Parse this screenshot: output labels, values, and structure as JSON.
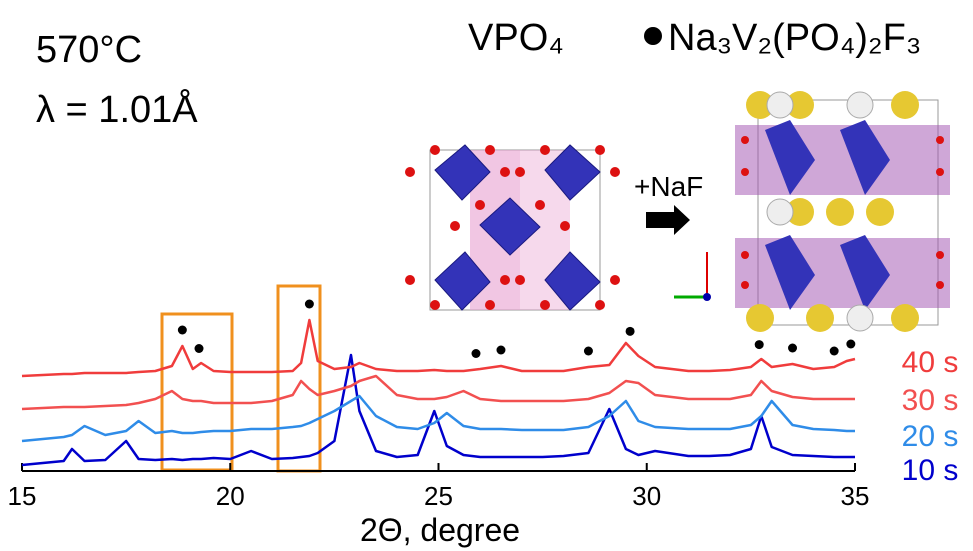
{
  "chart_data": {
    "type": "line",
    "title": "570°C",
    "subtitle": "λ = 1.01Å",
    "annotations": [
      "VPO₄",
      "Na₃V₂(PO₄)₂F₃",
      "+NaF"
    ],
    "xlabel": "2Θ, degree",
    "xlim": [
      15,
      35
    ],
    "xticks": [
      15,
      20,
      25,
      30,
      35
    ],
    "ylim": [
      0,
      160
    ],
    "x": [
      15,
      15.5,
      16,
      16.2,
      16.5,
      17,
      17.5,
      17.8,
      18.2,
      18.6,
      18.85,
      19.1,
      19.3,
      19.6,
      20,
      20.5,
      21,
      21.5,
      21.7,
      21.9,
      22.1,
      22.5,
      22.9,
      23.1,
      23.5,
      24,
      24.5,
      24.9,
      25.2,
      25.6,
      26,
      26.5,
      27,
      27.5,
      28,
      28.6,
      29.1,
      29.5,
      29.8,
      30.2,
      31,
      31.5,
      32,
      32.5,
      32.75,
      33,
      33.5,
      34,
      34.5,
      34.8,
      35
    ],
    "series": [
      {
        "name": "10 s",
        "color": "#0000cc",
        "values": [
          6,
          8,
          10,
          22,
          10,
          11,
          30,
          12,
          11,
          12,
          11,
          12,
          12,
          13,
          12,
          20,
          12,
          13,
          14,
          15,
          18,
          30,
          116,
          60,
          20,
          14,
          16,
          60,
          25,
          16,
          14,
          14,
          14,
          14,
          15,
          18,
          62,
          22,
          16,
          20,
          15,
          15,
          16,
          22,
          55,
          24,
          16,
          15,
          14,
          14,
          14
        ]
      },
      {
        "name": "20 s",
        "color": "#2f8ce8",
        "values": [
          30,
          32,
          34,
          36,
          45,
          36,
          40,
          50,
          38,
          40,
          38,
          38,
          39,
          40,
          40,
          42,
          42,
          44,
          45,
          48,
          52,
          60,
          70,
          75,
          55,
          44,
          42,
          48,
          58,
          45,
          42,
          42,
          41,
          41,
          41,
          44,
          55,
          70,
          50,
          44,
          42,
          42,
          42,
          46,
          55,
          70,
          46,
          42,
          41,
          40,
          40
        ]
      },
      {
        "name": "30 s",
        "color": "#f25050",
        "values": [
          62,
          63,
          64,
          64,
          64,
          65,
          66,
          68,
          72,
          80,
          72,
          70,
          70,
          68,
          68,
          68,
          70,
          76,
          90,
          82,
          76,
          80,
          85,
          90,
          95,
          76,
          72,
          72,
          74,
          80,
          72,
          70,
          70,
          70,
          70,
          72,
          78,
          90,
          88,
          76,
          72,
          72,
          72,
          76,
          90,
          80,
          74,
          72,
          72,
          72,
          72
        ]
      },
      {
        "name": "40 s",
        "color": "#f03c3c",
        "values": [
          95,
          96,
          97,
          97,
          98,
          98,
          98,
          99,
          100,
          105,
          125,
          102,
          108,
          100,
          99,
          99,
          99,
          100,
          108,
          151,
          110,
          102,
          104,
          108,
          102,
          100,
          100,
          101,
          100,
          100,
          102,
          105,
          100,
          100,
          100,
          104,
          106,
          128,
          115,
          104,
          100,
          100,
          101,
          104,
          112,
          104,
          107,
          102,
          104,
          110,
          112
        ]
      }
    ],
    "peak_markers": [
      18.85,
      19.25,
      21.9,
      25.9,
      26.5,
      28.6,
      29.6,
      32.7,
      33.5,
      34.5,
      34.9
    ]
  }
}
